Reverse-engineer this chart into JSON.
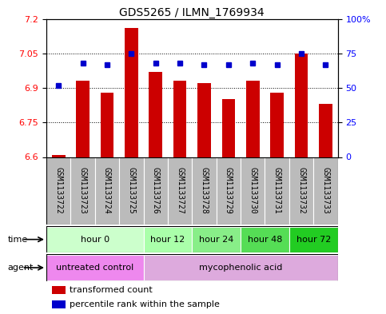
{
  "title": "GDS5265 / ILMN_1769934",
  "samples": [
    "GSM1133722",
    "GSM1133723",
    "GSM1133724",
    "GSM1133725",
    "GSM1133726",
    "GSM1133727",
    "GSM1133728",
    "GSM1133729",
    "GSM1133730",
    "GSM1133731",
    "GSM1133732",
    "GSM1133733"
  ],
  "bar_values": [
    6.61,
    6.93,
    6.88,
    7.16,
    6.97,
    6.93,
    6.92,
    6.85,
    6.93,
    6.88,
    7.05,
    6.83
  ],
  "dot_values": [
    52,
    68,
    67,
    75,
    68,
    68,
    67,
    67,
    68,
    67,
    75,
    67
  ],
  "bar_bottom": 6.6,
  "ylim": [
    6.6,
    7.2
  ],
  "y2lim": [
    0,
    100
  ],
  "yticks": [
    6.6,
    6.75,
    6.9,
    7.05,
    7.2
  ],
  "y2ticks": [
    0,
    25,
    50,
    75,
    100
  ],
  "ytick_labels": [
    "6.6",
    "6.75",
    "6.9",
    "7.05",
    "7.2"
  ],
  "y2tick_labels": [
    "0",
    "25",
    "50",
    "75",
    "100%"
  ],
  "bar_color": "#cc0000",
  "dot_color": "#0000cc",
  "time_groups": [
    {
      "label": "hour 0",
      "start": 0,
      "end": 3,
      "color": "#ccffcc"
    },
    {
      "label": "hour 12",
      "start": 4,
      "end": 5,
      "color": "#aaffaa"
    },
    {
      "label": "hour 24",
      "start": 6,
      "end": 7,
      "color": "#88ee88"
    },
    {
      "label": "hour 48",
      "start": 8,
      "end": 9,
      "color": "#55dd55"
    },
    {
      "label": "hour 72",
      "start": 10,
      "end": 11,
      "color": "#22cc22"
    }
  ],
  "agent_groups": [
    {
      "label": "untreated control",
      "start": 0,
      "end": 3,
      "color": "#ee88ee"
    },
    {
      "label": "mycophenolic acid",
      "start": 4,
      "end": 11,
      "color": "#ddaadd"
    }
  ],
  "legend_items": [
    {
      "color": "#cc0000",
      "label": "transformed count"
    },
    {
      "color": "#0000cc",
      "label": "percentile rank within the sample"
    }
  ],
  "sample_bg": "#bbbbbb",
  "bar_width": 0.55,
  "title_fontsize": 10,
  "tick_fontsize": 8,
  "label_fontsize": 8,
  "sample_fontsize": 7
}
